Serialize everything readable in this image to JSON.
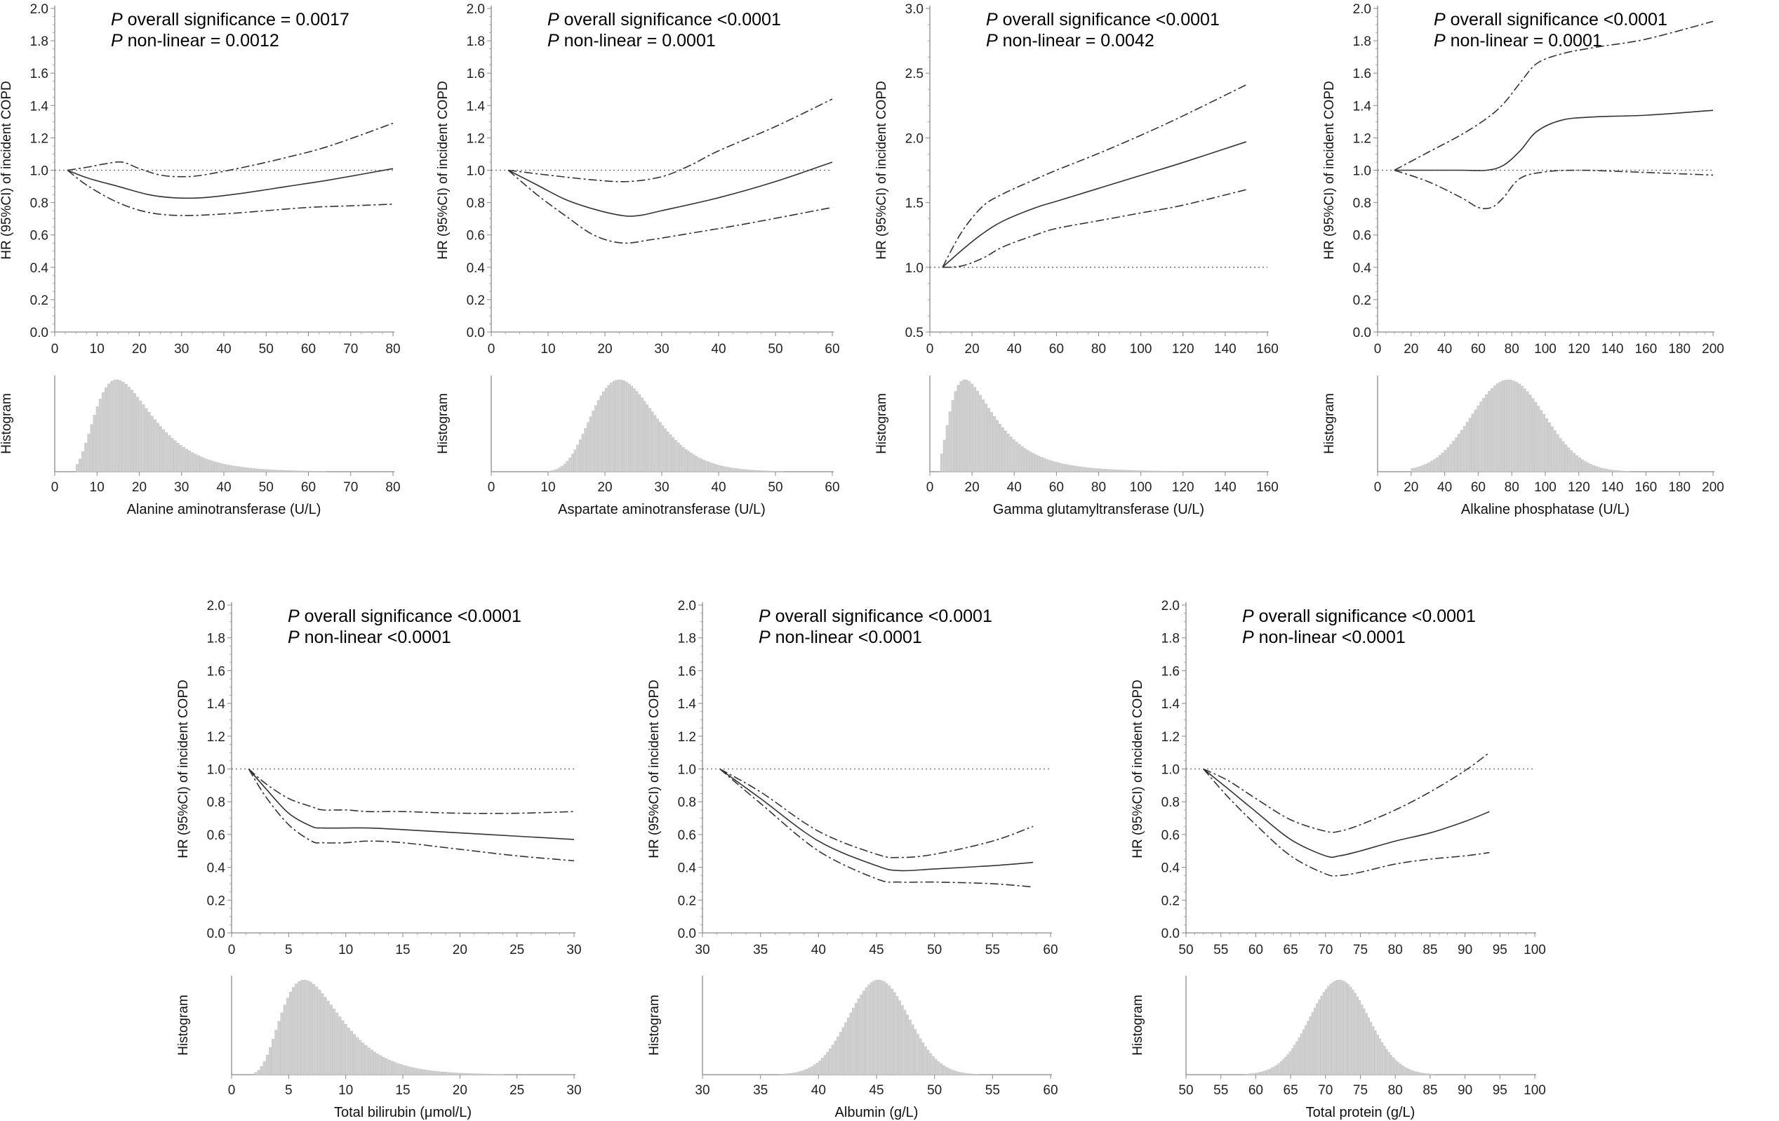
{
  "chart_data": [
    {
      "type": "line",
      "id": "alt",
      "title": "",
      "annotation": {
        "p_label": "P",
        "overall": "overall significance = 0.0017",
        "nonlinear": "non-linear = 0.0012"
      },
      "ylabel": "HR (95%CI) of incident COPD",
      "xlabel": "Alanine aminotransferase (U/L)",
      "hist_ylabel": "Histogram",
      "xlim": [
        0,
        80
      ],
      "xticks": [
        0,
        10,
        20,
        30,
        40,
        50,
        60,
        70,
        80
      ],
      "ylim": [
        0,
        2.0
      ],
      "yticks": [
        "0.0",
        "0.2",
        "0.4",
        "0.6",
        "0.8",
        "1.0",
        "1.2",
        "1.4",
        "1.6",
        "1.8",
        "2.0"
      ],
      "reference_line": 1.0,
      "series": [
        {
          "name": "HR",
          "style": "solid",
          "x": [
            3,
            8,
            15,
            22,
            28,
            35,
            45,
            55,
            65,
            80
          ],
          "y": [
            1.0,
            0.95,
            0.9,
            0.85,
            0.83,
            0.83,
            0.86,
            0.9,
            0.94,
            1.01
          ]
        },
        {
          "name": "Upper 95% CI",
          "style": "dashdot",
          "x": [
            3,
            8,
            12,
            16,
            20,
            25,
            30,
            35,
            45,
            55,
            65,
            80
          ],
          "y": [
            1.0,
            1.02,
            1.04,
            1.05,
            1.01,
            0.97,
            0.96,
            0.97,
            1.02,
            1.08,
            1.15,
            1.29
          ]
        },
        {
          "name": "Lower 95% CI",
          "style": "dashdot",
          "x": [
            3,
            8,
            15,
            22,
            30,
            40,
            50,
            60,
            70,
            80
          ],
          "y": [
            1.0,
            0.9,
            0.8,
            0.74,
            0.72,
            0.73,
            0.75,
            0.77,
            0.78,
            0.79
          ]
        }
      ],
      "histogram": {
        "dist": "lognormal",
        "median": 18,
        "sigma": 0.45,
        "min": 5,
        "max": 80
      }
    },
    {
      "type": "line",
      "id": "ast",
      "annotation": {
        "p_label": "P",
        "overall": "overall significance <0.0001",
        "nonlinear": "non-linear = 0.0001"
      },
      "ylabel": "HR (95%CI) of incident COPD",
      "xlabel": "Aspartate aminotransferase (U/L)",
      "hist_ylabel": "Histogram",
      "xlim": [
        0,
        60
      ],
      "xticks": [
        0,
        10,
        20,
        30,
        40,
        50,
        60
      ],
      "ylim": [
        0,
        2.0
      ],
      "yticks": [
        "0.0",
        "0.2",
        "0.4",
        "0.6",
        "0.8",
        "1.0",
        "1.2",
        "1.4",
        "1.6",
        "1.8",
        "2.0"
      ],
      "reference_line": 1.0,
      "series": [
        {
          "name": "HR",
          "style": "solid",
          "x": [
            3,
            8,
            13,
            18,
            23,
            26,
            30,
            40,
            50,
            60
          ],
          "y": [
            1.0,
            0.91,
            0.82,
            0.76,
            0.72,
            0.72,
            0.75,
            0.83,
            0.93,
            1.05
          ]
        },
        {
          "name": "Upper 95% CI",
          "style": "dashdot",
          "x": [
            3,
            10,
            18,
            24,
            30,
            35,
            40,
            50,
            60
          ],
          "y": [
            1.0,
            0.97,
            0.94,
            0.93,
            0.96,
            1.03,
            1.12,
            1.27,
            1.44
          ]
        },
        {
          "name": "Lower 95% CI",
          "style": "dashdot",
          "x": [
            3,
            8,
            13,
            18,
            23,
            28,
            35,
            45,
            60
          ],
          "y": [
            1.0,
            0.85,
            0.72,
            0.6,
            0.55,
            0.57,
            0.61,
            0.67,
            0.77
          ]
        }
      ],
      "histogram": {
        "dist": "lognormal",
        "median": 24,
        "sigma": 0.25,
        "min": 10,
        "max": 60
      }
    },
    {
      "type": "line",
      "id": "ggt",
      "annotation": {
        "p_label": "P",
        "overall": "overall significance <0.0001",
        "nonlinear": "non-linear = 0.0042"
      },
      "ylabel": "HR (95%CI) of incident COPD",
      "xlabel": "Gamma glutamyltransferase (U/L)",
      "hist_ylabel": "Histogram",
      "xlim": [
        0,
        160
      ],
      "xticks": [
        0,
        20,
        40,
        60,
        80,
        100,
        120,
        140,
        160
      ],
      "ylim": [
        0.5,
        3.0
      ],
      "yticks": [
        "0.5",
        "1.0",
        "1.5",
        "2.0",
        "2.5",
        "3.0"
      ],
      "reference_line": 1.0,
      "series": [
        {
          "name": "HR",
          "style": "solid",
          "x": [
            6,
            15,
            25,
            35,
            50,
            60,
            80,
            100,
            120,
            150
          ],
          "y": [
            1.0,
            1.13,
            1.26,
            1.36,
            1.46,
            1.51,
            1.61,
            1.71,
            1.81,
            1.97
          ]
        },
        {
          "name": "Upper 95% CI",
          "style": "dashdot",
          "x": [
            6,
            15,
            25,
            35,
            50,
            60,
            80,
            100,
            120,
            150
          ],
          "y": [
            1.0,
            1.27,
            1.47,
            1.57,
            1.68,
            1.75,
            1.88,
            2.02,
            2.17,
            2.41
          ]
        },
        {
          "name": "Lower 95% CI",
          "style": "dashdot",
          "x": [
            6,
            15,
            25,
            35,
            50,
            60,
            80,
            100,
            120,
            150
          ],
          "y": [
            1.0,
            1.01,
            1.07,
            1.16,
            1.25,
            1.3,
            1.36,
            1.42,
            1.48,
            1.6
          ]
        }
      ],
      "histogram": {
        "dist": "lognormal",
        "median": 24,
        "sigma": 0.6,
        "min": 5,
        "max": 150
      }
    },
    {
      "type": "line",
      "id": "alp",
      "annotation": {
        "p_label": "P",
        "overall": "overall significance <0.0001",
        "nonlinear": "non-linear = 0.0001"
      },
      "ylabel": "HR (95%CI) of incident COPD",
      "xlabel": "Alkaline phosphatase (U/L)",
      "hist_ylabel": "Histogram",
      "xlim": [
        0,
        200
      ],
      "xticks": [
        0,
        20,
        40,
        60,
        80,
        100,
        120,
        140,
        160,
        180,
        200
      ],
      "ylim": [
        0,
        2.0
      ],
      "yticks": [
        "0.0",
        "0.2",
        "0.4",
        "0.6",
        "0.8",
        "1.0",
        "1.2",
        "1.4",
        "1.6",
        "1.8",
        "2.0"
      ],
      "reference_line": 1.0,
      "series": [
        {
          "name": "HR",
          "style": "solid",
          "x": [
            10,
            30,
            50,
            65,
            75,
            85,
            95,
            110,
            130,
            160,
            200
          ],
          "y": [
            1.0,
            1.0,
            1.0,
            1.0,
            1.03,
            1.12,
            1.24,
            1.31,
            1.33,
            1.34,
            1.37
          ]
        },
        {
          "name": "Upper 95% CI",
          "style": "dashdot",
          "x": [
            10,
            30,
            50,
            65,
            75,
            85,
            95,
            110,
            130,
            160,
            200
          ],
          "y": [
            1.0,
            1.11,
            1.22,
            1.32,
            1.41,
            1.54,
            1.66,
            1.72,
            1.76,
            1.81,
            1.92
          ]
        },
        {
          "name": "Lower 95% CI",
          "style": "dashdot",
          "x": [
            10,
            30,
            50,
            60,
            68,
            75,
            85,
            100,
            120,
            150,
            200
          ],
          "y": [
            1.0,
            0.93,
            0.83,
            0.77,
            0.77,
            0.83,
            0.95,
            0.99,
            1.0,
            0.99,
            0.97
          ]
        }
      ],
      "histogram": {
        "dist": "normal",
        "mean": 78,
        "sd": 22,
        "min": 20,
        "max": 200
      }
    },
    {
      "type": "line",
      "id": "tbil",
      "annotation": {
        "p_label": "P",
        "overall": "overall significance <0.0001",
        "nonlinear": "non-linear <0.0001"
      },
      "ylabel": "HR (95%CI) of incident COPD",
      "xlabel": "Total bilirubin (μmol/L)",
      "hist_ylabel": "Histogram",
      "xlim": [
        0,
        30
      ],
      "xticks": [
        0,
        5,
        10,
        15,
        20,
        25,
        30
      ],
      "ylim": [
        0,
        2.0
      ],
      "yticks": [
        "0.0",
        "0.2",
        "0.4",
        "0.6",
        "0.8",
        "1.0",
        "1.2",
        "1.4",
        "1.6",
        "1.8",
        "2.0"
      ],
      "reference_line": 1.0,
      "series": [
        {
          "name": "HR",
          "style": "solid",
          "x": [
            1.5,
            3,
            5,
            7,
            8,
            10,
            12,
            15,
            20,
            25,
            30
          ],
          "y": [
            1.0,
            0.88,
            0.73,
            0.65,
            0.64,
            0.64,
            0.64,
            0.63,
            0.61,
            0.59,
            0.57
          ]
        },
        {
          "name": "Upper 95% CI",
          "style": "dashdot",
          "x": [
            1.5,
            3,
            5,
            7,
            8,
            10,
            12,
            15,
            20,
            25,
            30
          ],
          "y": [
            1.0,
            0.91,
            0.82,
            0.77,
            0.75,
            0.75,
            0.74,
            0.74,
            0.73,
            0.73,
            0.74
          ]
        },
        {
          "name": "Lower 95% CI",
          "style": "dashdot",
          "x": [
            1.5,
            3,
            5,
            7,
            8,
            10,
            12,
            15,
            20,
            25,
            30
          ],
          "y": [
            1.0,
            0.83,
            0.66,
            0.56,
            0.55,
            0.55,
            0.56,
            0.55,
            0.51,
            0.47,
            0.44
          ]
        }
      ],
      "histogram": {
        "dist": "lognormal",
        "median": 7.5,
        "sigma": 0.4,
        "min": 2,
        "max": 30
      }
    },
    {
      "type": "line",
      "id": "alb",
      "annotation": {
        "p_label": "P",
        "overall": "overall significance <0.0001",
        "nonlinear": "non-linear <0.0001"
      },
      "ylabel": "HR (95%CI) of incident COPD",
      "xlabel": "Albumin (g/L)",
      "hist_ylabel": "Histogram",
      "xlim": [
        30,
        60
      ],
      "xticks": [
        30,
        35,
        40,
        45,
        50,
        55,
        60
      ],
      "ylim": [
        0,
        2.0
      ],
      "yticks": [
        "0.0",
        "0.2",
        "0.4",
        "0.6",
        "0.8",
        "1.0",
        "1.2",
        "1.4",
        "1.6",
        "1.8",
        "2.0"
      ],
      "reference_line": 1.0,
      "series": [
        {
          "name": "HR",
          "style": "solid",
          "x": [
            31.5,
            35,
            40,
            45,
            47,
            50,
            55,
            58.5
          ],
          "y": [
            1.0,
            0.82,
            0.56,
            0.41,
            0.38,
            0.39,
            0.41,
            0.43
          ]
        },
        {
          "name": "Upper 95% CI",
          "style": "dashdot",
          "x": [
            31.5,
            35,
            40,
            45,
            47,
            50,
            55,
            58.5
          ],
          "y": [
            1.0,
            0.86,
            0.62,
            0.48,
            0.46,
            0.48,
            0.56,
            0.65
          ]
        },
        {
          "name": "Lower 95% CI",
          "style": "dashdot",
          "x": [
            31.5,
            35,
            40,
            45,
            47,
            50,
            55,
            58.5
          ],
          "y": [
            1.0,
            0.79,
            0.5,
            0.33,
            0.31,
            0.31,
            0.3,
            0.28
          ]
        }
      ],
      "histogram": {
        "dist": "normal",
        "mean": 45.2,
        "sd": 2.6,
        "min": 34,
        "max": 58.5
      }
    },
    {
      "type": "line",
      "id": "tp",
      "annotation": {
        "p_label": "P",
        "overall": "overall significance <0.0001",
        "nonlinear": "non-linear <0.0001"
      },
      "ylabel": "HR (95%CI) of incident COPD",
      "xlabel": "Total protein (g/L)",
      "hist_ylabel": "Histogram",
      "xlim": [
        50,
        100
      ],
      "xticks": [
        50,
        55,
        60,
        65,
        70,
        75,
        80,
        85,
        90,
        95,
        100
      ],
      "ylim": [
        0,
        2.0
      ],
      "yticks": [
        "0.0",
        "0.2",
        "0.4",
        "0.6",
        "0.8",
        "1.0",
        "1.2",
        "1.4",
        "1.6",
        "1.8",
        "2.0"
      ],
      "reference_line": 1.0,
      "series": [
        {
          "name": "HR",
          "style": "solid",
          "x": [
            52.5,
            56,
            60,
            65,
            70,
            72,
            75,
            80,
            85,
            90,
            93.5
          ],
          "y": [
            1.0,
            0.88,
            0.74,
            0.57,
            0.47,
            0.47,
            0.5,
            0.56,
            0.61,
            0.68,
            0.74
          ]
        },
        {
          "name": "Upper 95% CI",
          "style": "dashdot",
          "x": [
            52.5,
            56,
            60,
            65,
            70,
            72,
            75,
            80,
            85,
            90,
            93.5
          ],
          "y": [
            1.0,
            0.93,
            0.82,
            0.69,
            0.62,
            0.62,
            0.66,
            0.75,
            0.86,
            0.99,
            1.1
          ]
        },
        {
          "name": "Lower 95% CI",
          "style": "dashdot",
          "x": [
            52.5,
            56,
            60,
            65,
            70,
            72,
            75,
            80,
            85,
            90,
            93.5
          ],
          "y": [
            1.0,
            0.83,
            0.66,
            0.47,
            0.36,
            0.35,
            0.37,
            0.42,
            0.45,
            0.47,
            0.49
          ]
        }
      ],
      "histogram": {
        "dist": "normal",
        "mean": 72,
        "sd": 4.2,
        "min": 58,
        "max": 93.5
      }
    }
  ]
}
